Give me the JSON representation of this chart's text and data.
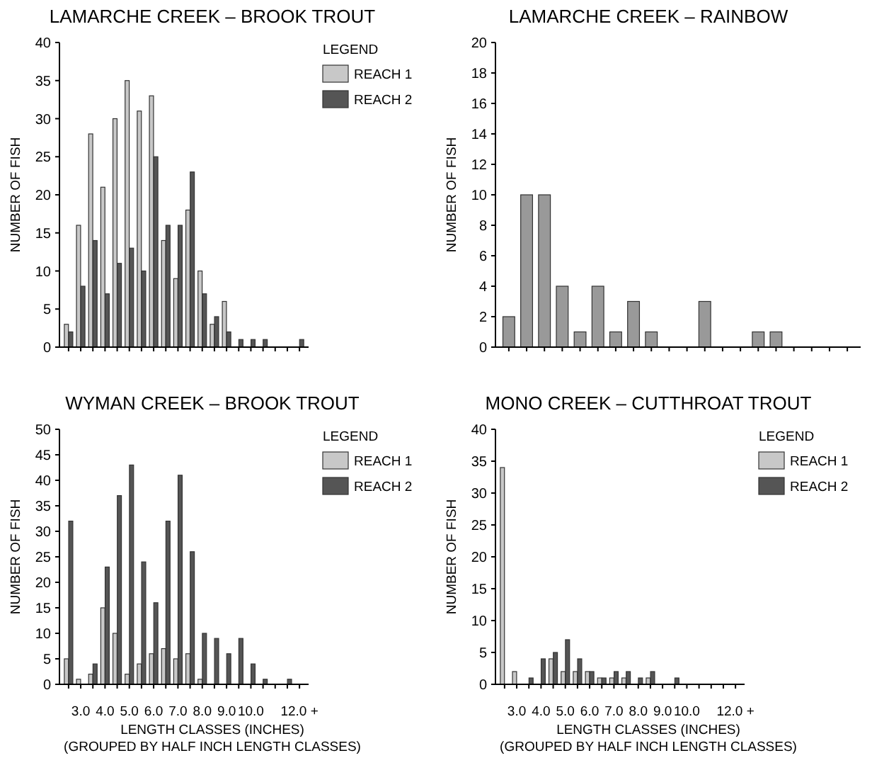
{
  "chart_data": [
    {
      "type": "bar",
      "title": "LAMARCHE CREEK – BROOK TROUT",
      "ylabel": "NUMBER OF FISH",
      "legend_title": "LEGEND",
      "legend": "right",
      "tick_labels": "y",
      "categories": [
        null,
        null,
        null,
        null,
        null,
        null,
        null,
        null,
        null,
        null,
        null,
        null,
        null,
        null,
        null,
        null,
        null,
        null,
        null,
        null
      ],
      "ylim": [
        0,
        40
      ],
      "yticks": [
        0,
        5,
        10,
        15,
        20,
        25,
        30,
        35,
        40
      ],
      "series": [
        {
          "name": "REACH 1",
          "color": "#c8c8c8",
          "values": [
            3,
            16,
            28,
            21,
            30,
            35,
            31,
            33,
            14,
            9,
            18,
            10,
            3,
            6,
            null,
            null,
            null,
            null,
            null,
            null
          ]
        },
        {
          "name": "REACH 2",
          "color": "#555555",
          "values": [
            2,
            8,
            14,
            7,
            11,
            13,
            10,
            25,
            16,
            16,
            23,
            7,
            4,
            2,
            1,
            1,
            1,
            null,
            null,
            1
          ]
        }
      ]
    },
    {
      "type": "bar",
      "title": "LAMARCHE CREEK – RAINBOW",
      "ylabel": "NUMBER OF FISH",
      "tick_labels": "y",
      "categories": [
        null,
        null,
        null,
        null,
        null,
        null,
        null,
        null,
        null,
        null,
        null,
        null,
        null,
        null,
        null,
        null,
        null,
        null,
        null,
        null
      ],
      "ylim": [
        0,
        20
      ],
      "yticks": [
        0,
        2,
        4,
        6,
        8,
        10,
        12,
        14,
        16,
        18,
        20
      ],
      "series": [
        {
          "color": "#999999",
          "values": [
            2,
            10,
            10,
            4,
            1,
            4,
            1,
            3,
            1,
            null,
            null,
            3,
            null,
            null,
            1,
            1,
            null,
            null,
            null,
            null
          ]
        }
      ]
    },
    {
      "type": "bar",
      "title": "WYMAN CREEK – BROOK TROUT",
      "ylabel": "NUMBER OF FISH",
      "xlabel": "LENGTH CLASSES (INCHES)",
      "legend_title": "LEGEND",
      "legend": "right",
      "annotations": [
        "(GROUPED BY HALF INCH LENGTH CLASSES)"
      ],
      "categories": [
        null,
        "3.0",
        null,
        "4.0",
        null,
        "5.0",
        null,
        "6.0",
        null,
        "7.0",
        null,
        "8.0",
        null,
        "9.0",
        null,
        "10.0",
        null,
        null,
        null,
        "12.0 +"
      ],
      "ylim": [
        0,
        50
      ],
      "yticks": [
        0,
        5,
        10,
        15,
        20,
        25,
        30,
        35,
        40,
        45,
        50
      ],
      "series": [
        {
          "name": "REACH 1",
          "color": "#c8c8c8",
          "values": [
            5,
            1,
            2,
            15,
            10,
            2,
            4,
            6,
            7,
            5,
            6,
            1,
            null,
            null,
            null,
            null,
            null,
            null,
            null,
            null
          ]
        },
        {
          "name": "REACH 2",
          "color": "#555555",
          "values": [
            32,
            null,
            4,
            23,
            37,
            43,
            24,
            16,
            32,
            41,
            26,
            10,
            9,
            6,
            9,
            4,
            1,
            null,
            1,
            null
          ]
        }
      ]
    },
    {
      "type": "bar",
      "title": "MONO CREEK – CUTTHROAT TROUT",
      "ylabel": "NUMBER OF FISH",
      "xlabel": "LENGTH CLASSES (INCHES)",
      "legend_title": "LEGEND",
      "legend": "right",
      "annotations": [
        "(GROUPED BY HALF INCH LENGTH CLASSES)"
      ],
      "categories": [
        null,
        "3.0",
        null,
        "4.0",
        null,
        "5.0",
        null,
        "6.0",
        null,
        "7.0",
        null,
        "8.0",
        null,
        "9.0",
        null,
        "10.0",
        null,
        null,
        null,
        "12.0 +"
      ],
      "ylim": [
        0,
        40
      ],
      "yticks": [
        0,
        5,
        10,
        15,
        20,
        25,
        30,
        35,
        40
      ],
      "series": [
        {
          "name": "REACH 1",
          "color": "#c8c8c8",
          "values": [
            34,
            2,
            null,
            null,
            4,
            2,
            2,
            2,
            1,
            1,
            1,
            null,
            1,
            null,
            null,
            null,
            null,
            null,
            null,
            null
          ]
        },
        {
          "name": "REACH 2",
          "color": "#555555",
          "values": [
            null,
            null,
            1,
            4,
            5,
            7,
            4,
            2,
            1,
            2,
            2,
            1,
            2,
            null,
            1,
            null,
            null,
            null,
            null,
            null
          ]
        }
      ]
    }
  ]
}
